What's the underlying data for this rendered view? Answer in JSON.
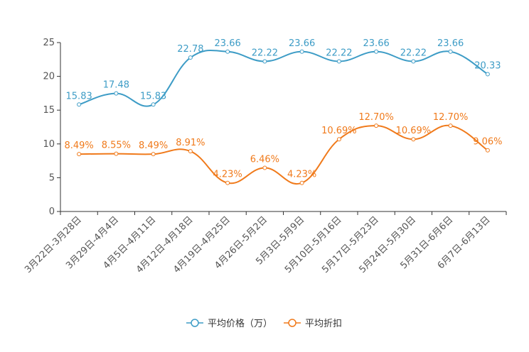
{
  "chart_data": {
    "type": "line",
    "title": "",
    "xlabel": "",
    "ylabel": "",
    "ylim": [
      0,
      25
    ],
    "yticks": [
      0,
      5,
      10,
      15,
      20,
      25
    ],
    "grid": false,
    "legend_position": "bottom-center",
    "categories": [
      "3月22日-3月28日",
      "3月29日-4月4日",
      "4月5日-4月11日",
      "4月12日-4月18日",
      "4月19日-4月25日",
      "4月26日-5月2日",
      "5月3日-5月9日",
      "5月10日-5月16日",
      "5月17日-5月23日",
      "5月24日-5月30日",
      "5月31日-6月6日",
      "6月7日-6月13日"
    ],
    "series": [
      {
        "name": "平均价格（万）",
        "color": "#3d9cc6",
        "values": [
          15.83,
          17.48,
          15.83,
          22.78,
          23.66,
          22.22,
          23.66,
          22.22,
          23.66,
          22.22,
          23.66,
          20.33
        ],
        "labels": [
          "15.83",
          "17.48",
          "15.83",
          "22.78",
          "23.66",
          "22.22",
          "23.66",
          "22.22",
          "23.66",
          "22.22",
          "23.66",
          "20.33"
        ]
      },
      {
        "name": "平均折扣",
        "color": "#f07a1b",
        "values": [
          8.49,
          8.55,
          8.49,
          8.91,
          4.23,
          6.46,
          4.23,
          10.69,
          12.7,
          10.69,
          12.7,
          9.06
        ],
        "labels": [
          "8.49%",
          "8.55%",
          "8.49%",
          "8.91%",
          "4.23%",
          "6.46%",
          "4.23%",
          "10.69%",
          "12.70%",
          "10.69%",
          "12.70%",
          "9.06%"
        ]
      }
    ]
  }
}
